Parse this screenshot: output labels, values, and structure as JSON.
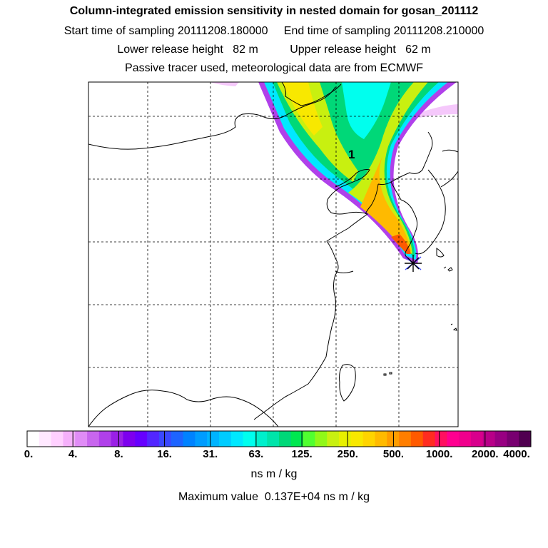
{
  "title": "Column-integrated emission sensitivity in nested domain for gosan_201112",
  "sampling_line": "Start time of sampling 20111208.180000     End time of sampling 20111208.210000",
  "release_line": "Lower release height   82 m          Upper release height   62 m",
  "tracer_line": "Passive tracer used, meteorological data are from ECMWF",
  "map_label": "1",
  "legend": {
    "ticks": [
      "0.",
      "4.",
      "8.",
      "16.",
      "31.",
      "63.",
      "125.",
      "250.",
      "500.",
      "1000.",
      "2000.",
      "4000."
    ],
    "colors": [
      "#ffffff",
      "#ffe8ff",
      "#ffd0ff",
      "#f5b0fb",
      "#e08cf6",
      "#c866ee",
      "#b040ea",
      "#9a20e6",
      "#7d00ee",
      "#6600ff",
      "#5226ff",
      "#3a48ff",
      "#1e64ff",
      "#0082ff",
      "#009cff",
      "#00b4ff",
      "#00ccff",
      "#00e8ff",
      "#00ffee",
      "#00f0cc",
      "#00e4aa",
      "#00d878",
      "#00e850",
      "#50ff30",
      "#90f818",
      "#c8f010",
      "#e8f000",
      "#f8e800",
      "#ffd400",
      "#ffba00",
      "#ff9c00",
      "#ff7e00",
      "#ff5a00",
      "#ff2c20",
      "#ff1060",
      "#ff0090",
      "#f0008c",
      "#d8008c",
      "#b80088",
      "#980082",
      "#780070",
      "#500050"
    ],
    "unit": "ns m / kg"
  },
  "max_value_line": "Maximum value  0.137E+04 ns m / kg"
}
